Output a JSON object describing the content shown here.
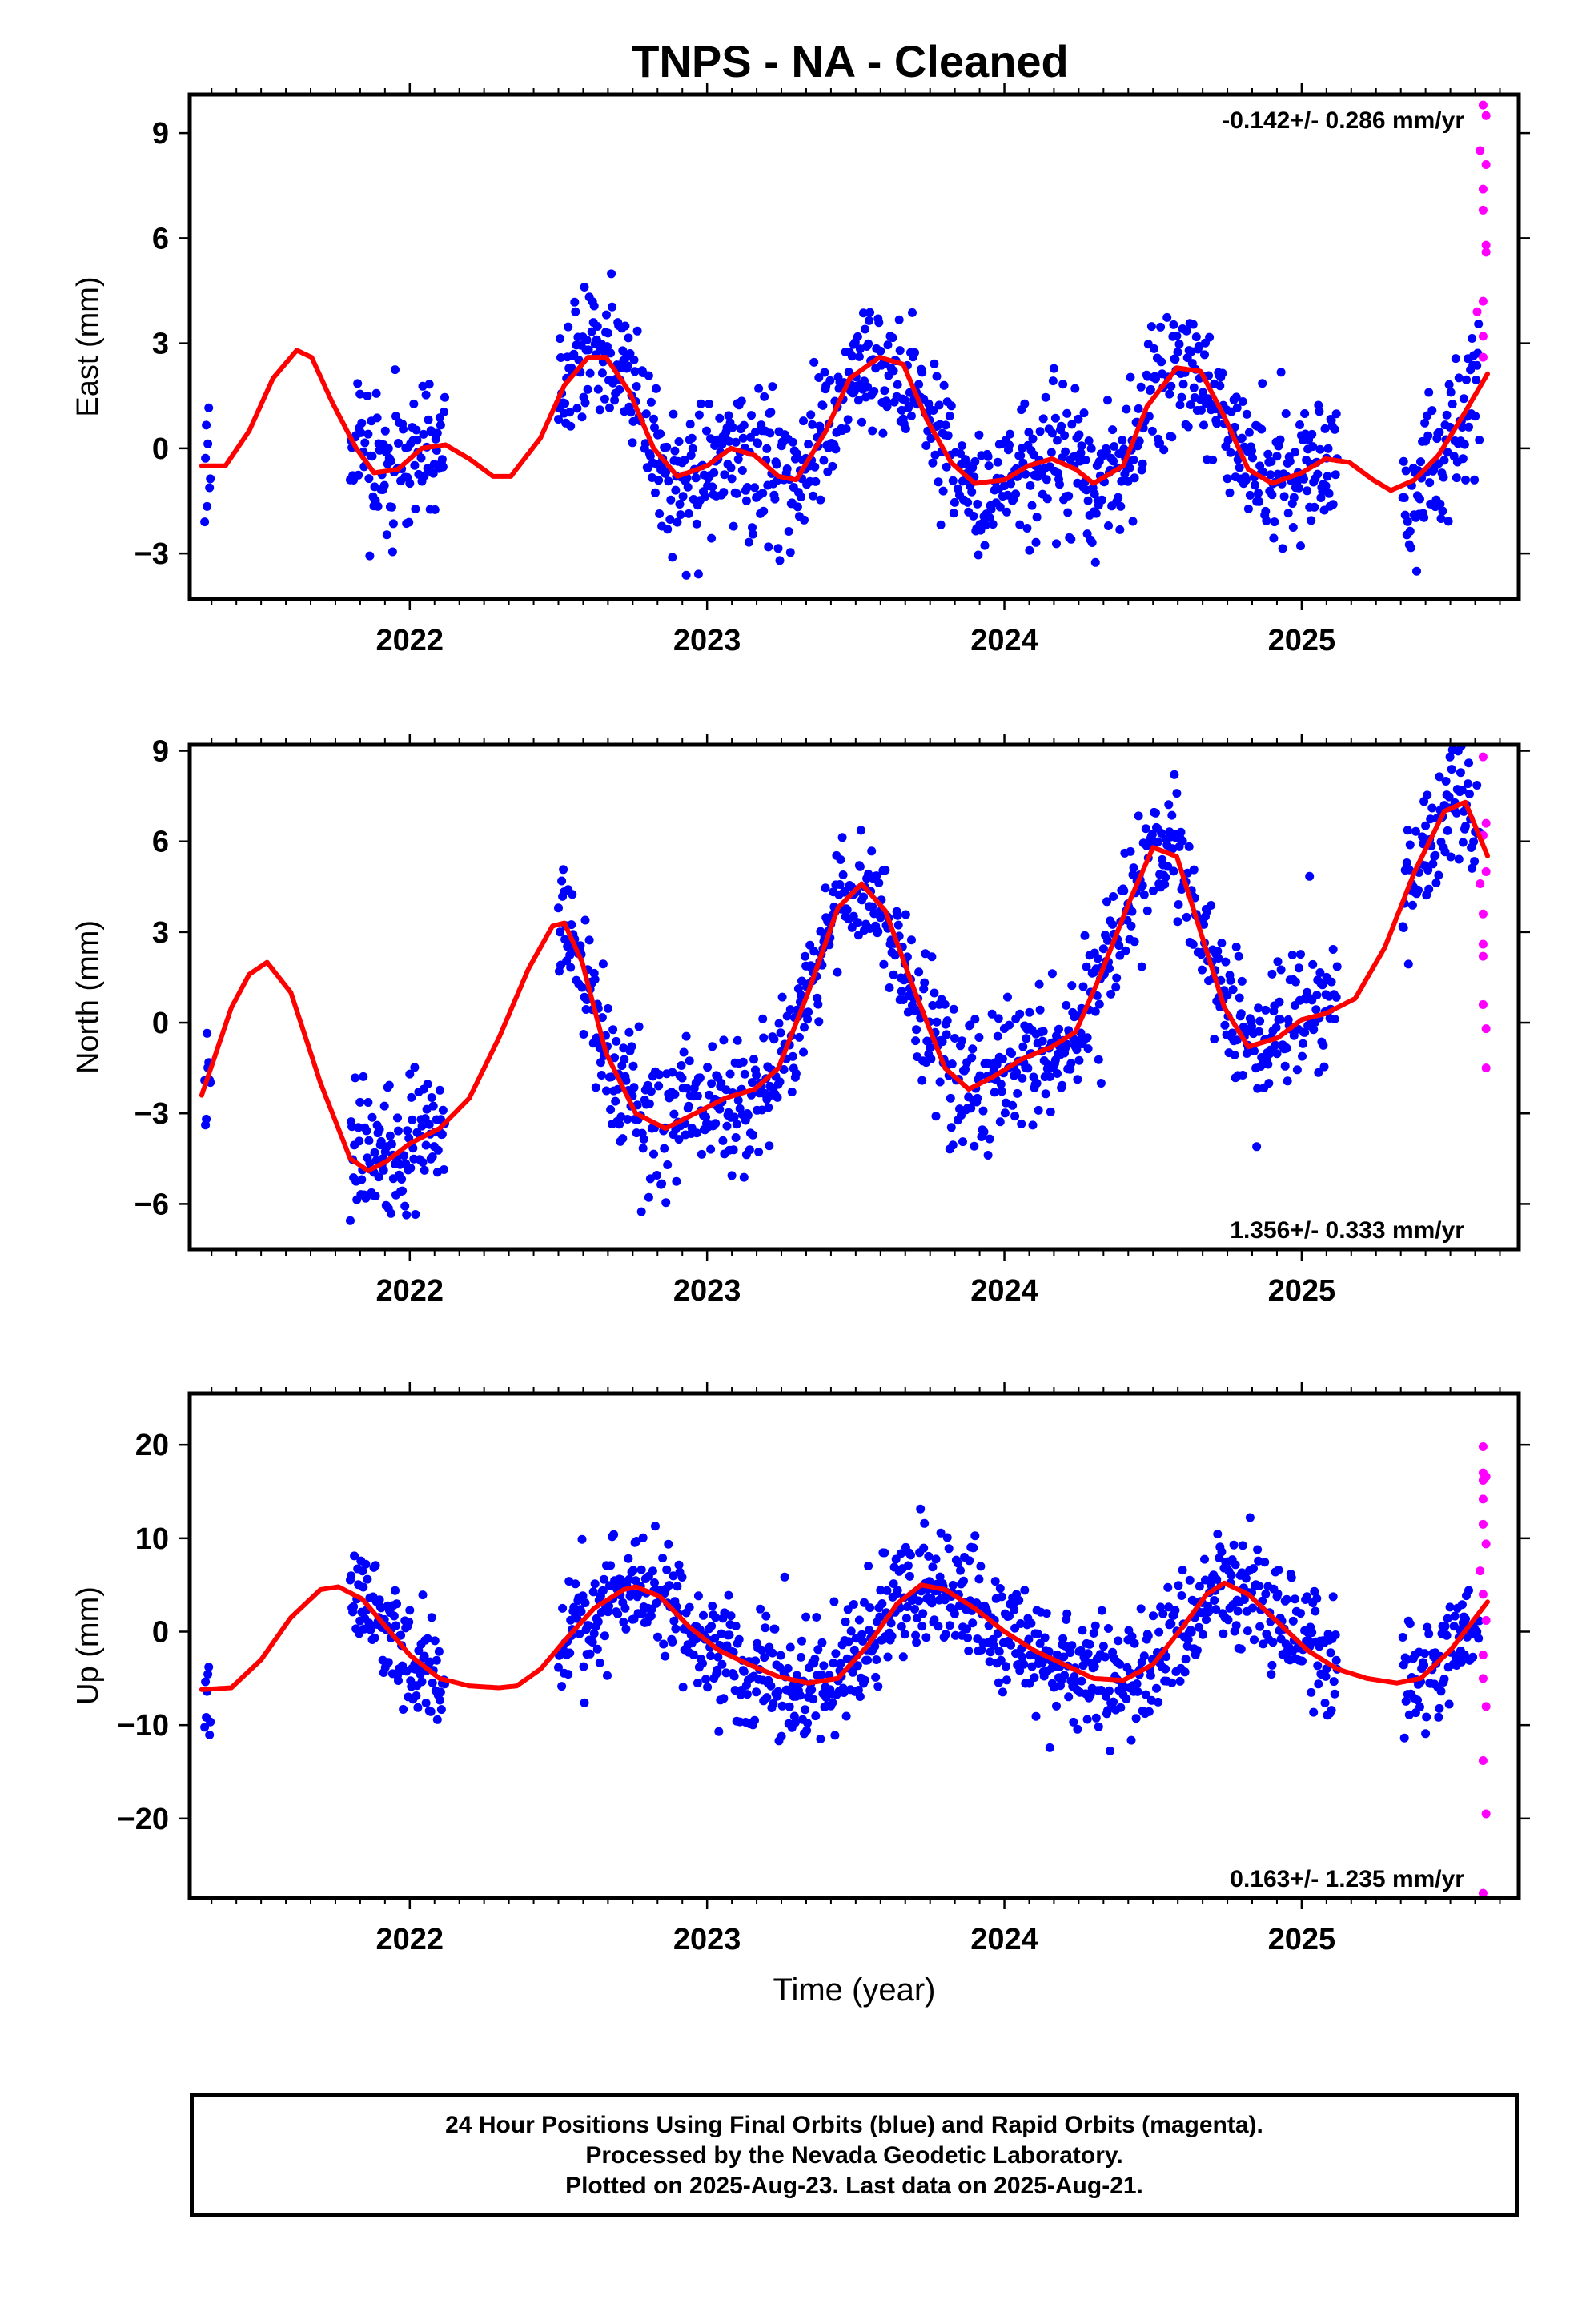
{
  "title": "TNPS  - NA - Cleaned",
  "colors": {
    "final": "#0000ff",
    "rapid": "#ff00ff",
    "model": "#ff0000",
    "frame": "#000000"
  },
  "footer": {
    "lines": [
      "24 Hour Positions Using Final Orbits (blue) and Rapid Orbits (magenta).",
      "Processed by the Nevada Geodetic Laboratory.",
      "Plotted on 2025-Aug-23. Last data on 2025-Aug-21."
    ]
  },
  "chart_data": [
    {
      "type": "scatter",
      "ylabel": "East (mm)",
      "xlabel": "",
      "rate_text": "-0.142+/- 0.286 mm/yr",
      "rate_position": "top-right",
      "xlim": [
        2021.26,
        2025.73
      ],
      "ylim": [
        -4.3,
        10.1
      ],
      "xticks": [
        2022,
        2023,
        2024,
        2025
      ],
      "xtick_labels": [
        "2022",
        "2023",
        "2024",
        "2025"
      ],
      "yticks": [
        -3,
        0,
        3,
        6,
        9
      ],
      "ytick_labels": [
        "−3",
        "0",
        "3",
        "6",
        "9"
      ],
      "model_fit": {
        "x": [
          2021.3,
          2021.38,
          2021.46,
          2021.54,
          2021.62,
          2021.67,
          2021.74,
          2021.82,
          2021.88,
          2021.96,
          2022.04,
          2022.12,
          2022.2,
          2022.28,
          2022.34,
          2022.44,
          2022.52,
          2022.6,
          2022.66,
          2022.74,
          2022.82,
          2022.9,
          2023.0,
          2023.08,
          2023.16,
          2023.24,
          2023.3,
          2023.4,
          2023.48,
          2023.58,
          2023.66,
          2023.74,
          2023.82,
          2023.9,
          2024.0,
          2024.08,
          2024.16,
          2024.24,
          2024.3,
          2024.4,
          2024.48,
          2024.58,
          2024.66,
          2024.74,
          2024.82,
          2024.9,
          2025.0,
          2025.08,
          2025.16,
          2025.24,
          2025.3,
          2025.38,
          2025.46,
          2025.54,
          2025.63
        ],
        "y": [
          -0.5,
          -0.5,
          0.5,
          2.0,
          2.8,
          2.6,
          1.3,
          0.0,
          -0.7,
          -0.6,
          0.0,
          0.1,
          -0.3,
          -0.8,
          -0.8,
          0.3,
          1.8,
          2.6,
          2.6,
          1.6,
          0.0,
          -0.8,
          -0.5,
          0.0,
          -0.2,
          -0.8,
          -0.9,
          0.5,
          2.0,
          2.6,
          2.4,
          0.8,
          -0.4,
          -1.0,
          -0.9,
          -0.5,
          -0.3,
          -0.6,
          -1.0,
          -0.5,
          1.2,
          2.3,
          2.2,
          0.9,
          -0.6,
          -1.0,
          -0.7,
          -0.3,
          -0.4,
          -0.9,
          -1.2,
          -0.9,
          -0.2,
          0.9,
          2.2
        ]
      },
      "final_segments": [
        {
          "x0": 2021.31,
          "x1": 2021.33,
          "seed": 11
        },
        {
          "x0": 2021.8,
          "x1": 2022.12,
          "seed": 12
        },
        {
          "x0": 2022.5,
          "x1": 2023.4,
          "seed": 13
        },
        {
          "x0": 2023.4,
          "x1": 2025.12,
          "seed": 14
        },
        {
          "x0": 2025.34,
          "x1": 2025.6,
          "seed": 15
        }
      ],
      "scatter_spread": 1.0,
      "rapid_points": [
        [
          2025.61,
          9.8
        ],
        [
          2025.62,
          9.5
        ],
        [
          2025.6,
          8.5
        ],
        [
          2025.62,
          8.1
        ],
        [
          2025.61,
          7.4
        ],
        [
          2025.61,
          6.8
        ],
        [
          2025.62,
          5.8
        ],
        [
          2025.62,
          5.6
        ],
        [
          2025.61,
          4.2
        ],
        [
          2025.59,
          3.9
        ],
        [
          2025.61,
          3.2
        ],
        [
          2025.61,
          2.6
        ]
      ]
    },
    {
      "type": "scatter",
      "ylabel": "North (mm)",
      "xlabel": "",
      "rate_text": "1.356+/- 0.333 mm/yr",
      "rate_position": "bottom-right",
      "xlim": [
        2021.26,
        2025.73
      ],
      "ylim": [
        -7.5,
        9.2
      ],
      "xticks": [
        2022,
        2023,
        2024,
        2025
      ],
      "xtick_labels": [
        "2022",
        "2023",
        "2024",
        "2025"
      ],
      "yticks": [
        -6,
        -3,
        0,
        3,
        6,
        9
      ],
      "ytick_labels": [
        "−6",
        "−3",
        "0",
        "3",
        "6",
        "9"
      ],
      "model_fit": {
        "x": [
          2021.3,
          2021.4,
          2021.46,
          2021.52,
          2021.6,
          2021.7,
          2021.8,
          2021.86,
          2021.92,
          2022.0,
          2022.1,
          2022.2,
          2022.3,
          2022.4,
          2022.48,
          2022.52,
          2022.58,
          2022.66,
          2022.76,
          2022.86,
          2022.96,
          2023.06,
          2023.16,
          2023.24,
          2023.34,
          2023.44,
          2023.52,
          2023.6,
          2023.7,
          2023.8,
          2023.88,
          2023.96,
          2024.06,
          2024.16,
          2024.24,
          2024.32,
          2024.42,
          2024.5,
          2024.58,
          2024.66,
          2024.74,
          2024.82,
          2024.92,
          2025.0,
          2025.08,
          2025.18,
          2025.28,
          2025.38,
          2025.48,
          2025.55,
          2025.63
        ],
        "y": [
          -2.4,
          0.5,
          1.6,
          2.0,
          1.0,
          -2.0,
          -4.5,
          -4.9,
          -4.6,
          -4.0,
          -3.5,
          -2.5,
          -0.5,
          1.8,
          3.2,
          3.3,
          2.0,
          -1.0,
          -3.0,
          -3.5,
          -3.0,
          -2.5,
          -2.2,
          -1.5,
          1.0,
          3.8,
          4.6,
          3.7,
          1.0,
          -1.5,
          -2.2,
          -1.8,
          -1.2,
          -0.8,
          -0.3,
          1.5,
          4.0,
          5.8,
          5.5,
          3.0,
          0.5,
          -0.8,
          -0.5,
          0.1,
          0.3,
          0.8,
          2.5,
          5.0,
          7.0,
          7.3,
          5.4
        ]
      },
      "final_segments": [
        {
          "x0": 2021.31,
          "x1": 2021.33,
          "seed": 21
        },
        {
          "x0": 2021.8,
          "x1": 2022.12,
          "seed": 22
        },
        {
          "x0": 2022.5,
          "x1": 2023.4,
          "seed": 23
        },
        {
          "x0": 2023.4,
          "x1": 2025.12,
          "seed": 24
        },
        {
          "x0": 2025.34,
          "x1": 2025.6,
          "seed": 25
        }
      ],
      "scatter_spread": 1.1,
      "rapid_points": [
        [
          2025.61,
          8.8
        ],
        [
          2025.62,
          6.6
        ],
        [
          2025.61,
          6.2
        ],
        [
          2025.62,
          5.0
        ],
        [
          2025.6,
          4.6
        ],
        [
          2025.61,
          3.6
        ],
        [
          2025.61,
          2.6
        ],
        [
          2025.61,
          2.2
        ],
        [
          2025.61,
          0.6
        ],
        [
          2025.62,
          -0.2
        ],
        [
          2025.62,
          -1.5
        ]
      ]
    },
    {
      "type": "scatter",
      "ylabel": "Up (mm)",
      "xlabel": "Time (year)",
      "rate_text": "0.163+/- 1.235 mm/yr",
      "rate_position": "bottom-right",
      "xlim": [
        2021.26,
        2025.73
      ],
      "ylim": [
        -28.5,
        25.5
      ],
      "xticks": [
        2022,
        2023,
        2024,
        2025
      ],
      "xtick_labels": [
        "2022",
        "2023",
        "2024",
        "2025"
      ],
      "yticks": [
        -20,
        -10,
        0,
        10,
        20
      ],
      "ytick_labels": [
        "−20",
        "−10",
        "0",
        "10",
        "20"
      ],
      "model_fit": {
        "x": [
          2021.3,
          2021.4,
          2021.5,
          2021.6,
          2021.7,
          2021.76,
          2021.84,
          2021.92,
          2022.0,
          2022.1,
          2022.2,
          2022.3,
          2022.36,
          2022.44,
          2022.52,
          2022.62,
          2022.72,
          2022.76,
          2022.84,
          2022.94,
          2023.04,
          2023.14,
          2023.24,
          2023.34,
          2023.44,
          2023.54,
          2023.64,
          2023.72,
          2023.8,
          2023.9,
          2024.0,
          2024.1,
          2024.2,
          2024.3,
          2024.4,
          2024.5,
          2024.6,
          2024.68,
          2024.74,
          2024.82,
          2024.92,
          2025.02,
          2025.12,
          2025.22,
          2025.32,
          2025.4,
          2025.5,
          2025.63
        ],
        "y": [
          -6.2,
          -6.0,
          -3.0,
          1.5,
          4.5,
          4.8,
          3.5,
          0.5,
          -2.5,
          -5.0,
          -5.8,
          -6.0,
          -5.8,
          -4.0,
          -1.0,
          2.5,
          4.5,
          4.8,
          3.8,
          0.5,
          -2.0,
          -3.5,
          -4.8,
          -5.5,
          -5.0,
          -1.5,
          3.0,
          5.0,
          4.5,
          2.5,
          0.0,
          -2.0,
          -3.5,
          -5.0,
          -5.2,
          -3.5,
          0.5,
          4.0,
          5.2,
          4.0,
          1.0,
          -2.0,
          -4.0,
          -5.0,
          -5.5,
          -5.0,
          -2.0,
          3.4
        ]
      },
      "final_segments": [
        {
          "x0": 2021.31,
          "x1": 2021.33,
          "seed": 31
        },
        {
          "x0": 2021.8,
          "x1": 2022.12,
          "seed": 32
        },
        {
          "x0": 2022.5,
          "x1": 2023.4,
          "seed": 33
        },
        {
          "x0": 2023.4,
          "x1": 2025.12,
          "seed": 34
        },
        {
          "x0": 2025.34,
          "x1": 2025.6,
          "seed": 35
        }
      ],
      "scatter_spread": 3.2,
      "rapid_points": [
        [
          2025.61,
          19.8
        ],
        [
          2025.61,
          17.0
        ],
        [
          2025.62,
          16.6
        ],
        [
          2025.61,
          16.2
        ],
        [
          2025.61,
          14.2
        ],
        [
          2025.61,
          11.5
        ],
        [
          2025.62,
          9.4
        ],
        [
          2025.6,
          6.5
        ],
        [
          2025.61,
          4.0
        ],
        [
          2025.62,
          1.2
        ],
        [
          2025.61,
          -2.5
        ],
        [
          2025.61,
          -5.0
        ],
        [
          2025.62,
          -8.0
        ],
        [
          2025.61,
          -13.8
        ],
        [
          2025.62,
          -19.5
        ],
        [
          2025.61,
          -28.0
        ]
      ]
    }
  ]
}
